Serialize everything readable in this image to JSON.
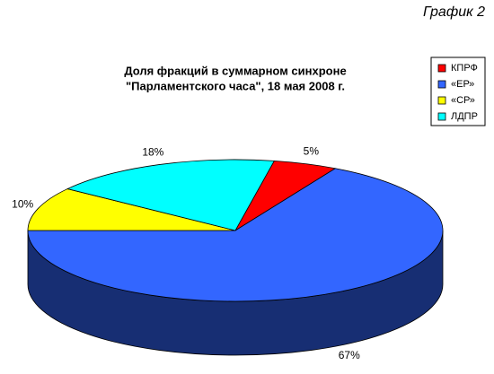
{
  "chart_data": {
    "type": "pie3d",
    "annotation": "График 2",
    "title": [
      "Доля фракций в суммарном синхроне",
      "\"Парламентского часа\", 18 мая 2008 г."
    ],
    "categories": [
      "КПРФ",
      "«ЕР»",
      "«СР»",
      "ЛДПР"
    ],
    "values": [
      5,
      67,
      10,
      18
    ],
    "value_labels": [
      "5%",
      "67%",
      "10%",
      "18%"
    ],
    "colors": [
      "#ff0000",
      "#3366ff",
      "#ffff00",
      "#00ffff"
    ],
    "legend": "right"
  }
}
